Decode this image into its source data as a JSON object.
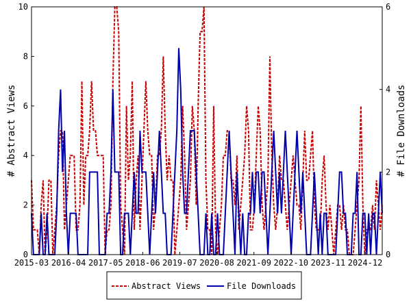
{
  "chart_data": {
    "type": "line",
    "title": "",
    "xlabel": "",
    "ylabel_left": "# Abstract Views",
    "ylabel_right": "# File Downloads",
    "x_tick_labels": [
      "2015-03",
      "2016-04",
      "2017-05",
      "2018-06",
      "2019-07",
      "2020-08",
      "2021-09",
      "2022-10",
      "2023-11",
      "2024-12"
    ],
    "x_start": "2015-03",
    "x_end": "2025-06",
    "ylim_left": [
      0,
      10
    ],
    "ylim_right": [
      0,
      6
    ],
    "left_ticks": [
      0,
      2,
      4,
      6,
      8,
      10
    ],
    "right_ticks": [
      0,
      2,
      4,
      6
    ],
    "grid": false,
    "legend_position": "bottom-center",
    "series": [
      {
        "name": "Abstract Views",
        "axis": "left",
        "color": "#cc0000",
        "style": "dashed",
        "values": [
          3,
          1,
          1,
          1,
          0,
          2,
          3,
          0,
          1,
          3,
          3,
          0,
          1,
          2,
          4,
          5,
          5,
          1,
          2,
          3,
          4,
          4,
          4,
          1,
          1,
          2,
          7,
          2,
          4,
          4,
          5,
          7,
          5,
          5,
          4,
          4,
          4,
          4,
          0,
          1,
          1,
          2,
          7,
          10,
          10,
          9,
          2,
          1,
          0,
          6,
          3,
          4,
          7,
          1,
          3,
          4,
          1,
          3,
          5,
          7,
          5,
          4,
          4,
          1,
          2,
          4,
          4,
          5,
          8,
          5,
          3,
          4,
          3,
          3,
          0,
          1,
          2,
          3,
          6,
          4,
          1,
          2,
          3,
          6,
          5,
          2,
          6,
          9,
          9,
          10,
          3,
          1,
          1,
          0,
          6,
          1,
          0,
          1,
          2,
          4,
          4,
          5,
          5,
          3,
          3,
          2,
          4,
          1,
          2,
          3,
          4,
          6,
          5,
          1,
          1,
          2,
          4,
          6,
          5,
          2,
          1,
          2,
          3,
          8,
          4,
          2,
          1,
          2,
          4,
          3,
          3,
          2,
          1,
          2,
          3,
          4,
          3,
          2,
          2,
          1,
          3,
          5,
          3,
          3,
          4,
          5,
          2,
          1,
          1,
          1,
          3,
          4,
          2,
          1,
          2,
          1,
          0,
          1,
          2,
          2,
          1,
          2,
          1,
          1,
          0,
          0,
          0,
          1,
          2,
          3,
          6,
          2,
          0,
          1,
          1,
          1,
          2,
          1,
          3,
          2,
          1,
          2
        ]
      },
      {
        "name": "File Downloads",
        "axis": "right",
        "color": "#0000aa",
        "style": "solid",
        "values": [
          1,
          0,
          0,
          0,
          0,
          1,
          0,
          0,
          1,
          0,
          0,
          0,
          0,
          1,
          3,
          4,
          2,
          3,
          1,
          0,
          1,
          1,
          1,
          1,
          0,
          0,
          0,
          0,
          0,
          0,
          2,
          2,
          2,
          2,
          2,
          0,
          0,
          0,
          0,
          1,
          1,
          2,
          4,
          2,
          2,
          2,
          0,
          0,
          1,
          1,
          1,
          0,
          1,
          2,
          1,
          1,
          3,
          2,
          2,
          2,
          1,
          0,
          1,
          2,
          1,
          2,
          3,
          2,
          1,
          1,
          0,
          0,
          0,
          1,
          2,
          3,
          5,
          4,
          2,
          1,
          1,
          2,
          3,
          3,
          3,
          2,
          1,
          0,
          0,
          0,
          1,
          0,
          0,
          1,
          0,
          0,
          1,
          0,
          0,
          0,
          1,
          2,
          3,
          2,
          1,
          0,
          2,
          1,
          0,
          1,
          0,
          0,
          1,
          1,
          2,
          1,
          2,
          2,
          1,
          2,
          2,
          1,
          0,
          1,
          2,
          3,
          2,
          1,
          2,
          1,
          2,
          3,
          2,
          1,
          0,
          1,
          2,
          3,
          2,
          1,
          2,
          1,
          0,
          0,
          0,
          1,
          2,
          1,
          0,
          1,
          0,
          1,
          1,
          0,
          0,
          0,
          0,
          0,
          1,
          2,
          2,
          1,
          1,
          0,
          0,
          0,
          1,
          1,
          2,
          0,
          0,
          1,
          1,
          0,
          1,
          0,
          1,
          1,
          0,
          1,
          2,
          1
        ]
      }
    ]
  }
}
